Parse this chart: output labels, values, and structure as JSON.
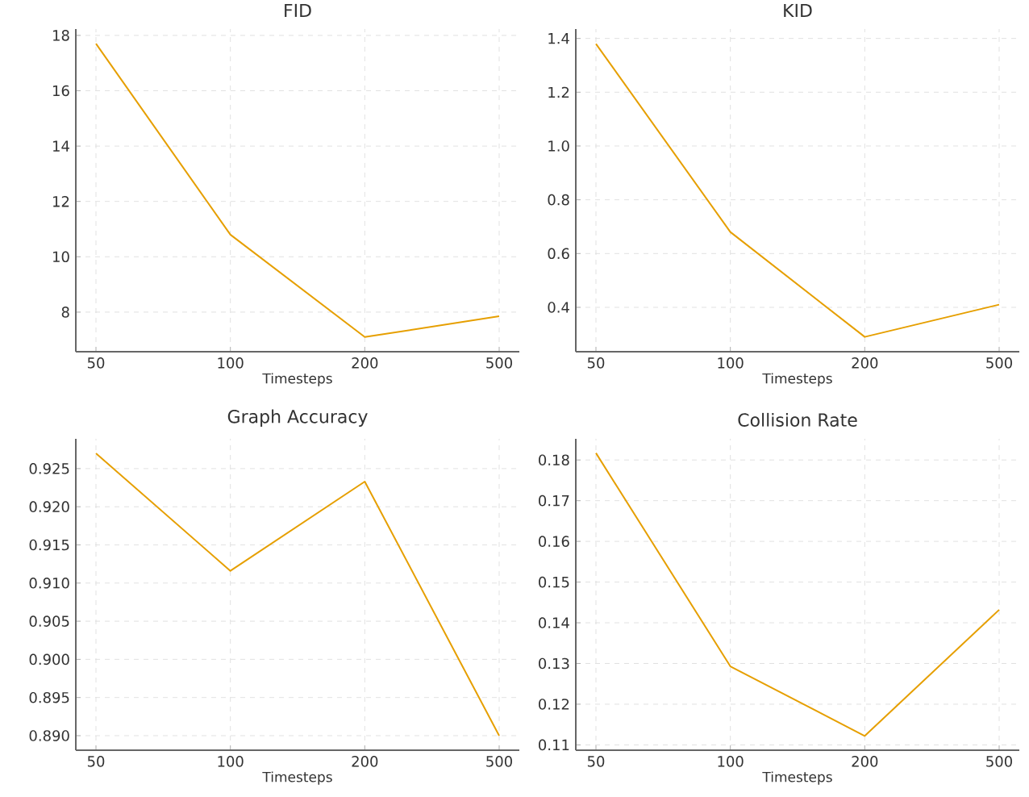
{
  "chart_data": [
    {
      "type": "line",
      "title": "FID",
      "xlabel": "Timesteps",
      "categories": [
        "50",
        "100",
        "200",
        "500"
      ],
      "values": [
        17.7,
        10.8,
        7.1,
        7.85
      ],
      "color": "#e69f00",
      "ylim": [
        6.57,
        18.23
      ],
      "yticks": [
        8,
        10,
        12,
        14,
        16,
        18
      ],
      "grid": true
    },
    {
      "type": "line",
      "title": "KID",
      "xlabel": "Timesteps",
      "categories": [
        "50",
        "100",
        "200",
        "500"
      ],
      "values": [
        1.38,
        0.68,
        0.29,
        0.41
      ],
      "color": "#e69f00",
      "ylim": [
        0.235,
        1.435
      ],
      "yticks": [
        0.4,
        0.6,
        0.8,
        {
          "value": 1.0,
          "label": "1.0"
        },
        1.2,
        1.4
      ],
      "grid": true
    },
    {
      "type": "line",
      "title": "Graph Accuracy",
      "xlabel": "Timesteps",
      "categories": [
        "50",
        "100",
        "200",
        "500"
      ],
      "values": [
        0.927,
        0.9116,
        0.9233,
        0.89
      ],
      "color": "#e69f00",
      "ylim": [
        0.8881,
        0.9289
      ],
      "yticks": [
        {
          "value": 0.89,
          "label": "0.890"
        },
        {
          "value": 0.895,
          "label": "0.895"
        },
        {
          "value": 0.9,
          "label": "0.900"
        },
        {
          "value": 0.905,
          "label": "0.905"
        },
        {
          "value": 0.91,
          "label": "0.910"
        },
        {
          "value": 0.915,
          "label": "0.915"
        },
        {
          "value": 0.92,
          "label": "0.920"
        },
        {
          "value": 0.925,
          "label": "0.925"
        }
      ],
      "grid": true
    },
    {
      "type": "line",
      "title": "Collision Rate",
      "xlabel": "Timesteps",
      "categories": [
        "50",
        "100",
        "200",
        "500"
      ],
      "values": [
        0.1817,
        0.1293,
        0.1122,
        0.1432
      ],
      "color": "#e69f00",
      "ylim": [
        0.1087,
        0.1852
      ],
      "yticks": [
        0.11,
        0.12,
        0.13,
        0.14,
        0.15,
        0.16,
        0.17,
        0.18
      ],
      "grid": true
    }
  ]
}
